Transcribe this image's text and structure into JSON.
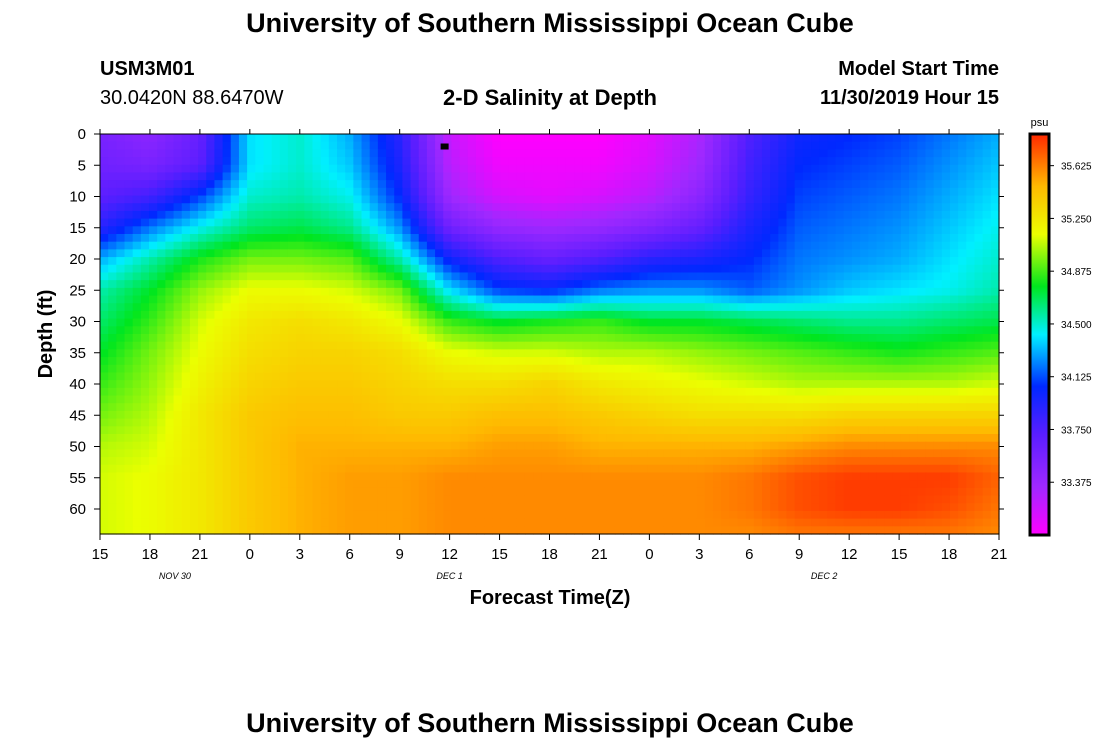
{
  "page": {
    "title_top": "University of Southern Mississippi Ocean Cube",
    "title_bottom": "University of Southern Mississippi Ocean Cube",
    "station_id": "USM3M01",
    "station_coords": "30.0420N 88.6470W",
    "plot_title": "2-D Salinity at Depth",
    "model_start_label": "Model Start Time",
    "model_start_value": "11/30/2019 Hour 15"
  },
  "chart_data": {
    "type": "heatmap",
    "title": "2-D Salinity at Depth",
    "xlabel": "Forecast Time(Z)",
    "ylabel": "Depth (ft)",
    "x_hours_from_start": [
      0,
      54
    ],
    "x_tick_labels": [
      "15",
      "18",
      "21",
      "0",
      "3",
      "6",
      "9",
      "12",
      "15",
      "18",
      "21",
      "0",
      "3",
      "6",
      "9",
      "12",
      "15",
      "18",
      "21"
    ],
    "date_labels": [
      {
        "text": "NOV 30",
        "hour": 4.5
      },
      {
        "text": "DEC 1",
        "hour": 21
      },
      {
        "text": "DEC 2",
        "hour": 43.5
      }
    ],
    "ylim": [
      0,
      64
    ],
    "y_ticks": [
      0,
      5,
      10,
      15,
      20,
      25,
      30,
      35,
      40,
      45,
      50,
      55,
      60
    ],
    "colorbar": {
      "unit": "psu",
      "range": [
        33.0,
        35.85
      ],
      "ticks": [
        "35.625",
        "35.250",
        "34.875",
        "34.500",
        "34.125",
        "33.750",
        "33.375"
      ],
      "tick_values": [
        35.625,
        35.25,
        34.875,
        34.5,
        34.125,
        33.75,
        33.375
      ]
    },
    "depth_levels_ft": [
      0,
      5,
      10,
      15,
      20,
      25,
      30,
      35,
      40,
      45,
      50,
      55,
      60,
      64
    ],
    "time_hours": [
      0,
      3,
      6,
      9,
      12,
      15,
      18,
      21,
      24,
      27,
      30,
      33,
      36,
      39,
      42,
      45,
      48,
      51,
      54
    ],
    "salinity_psu": [
      [
        33.55,
        33.45,
        33.65,
        34.4,
        34.5,
        34.3,
        33.9,
        33.2,
        33.0,
        33.0,
        33.0,
        33.1,
        33.3,
        33.75,
        34.0,
        34.05,
        34.1,
        34.2,
        34.3
      ],
      [
        33.6,
        33.55,
        33.7,
        34.4,
        34.5,
        34.35,
        33.95,
        33.25,
        33.05,
        33.05,
        33.05,
        33.15,
        33.35,
        33.8,
        34.05,
        34.1,
        34.15,
        34.25,
        34.35
      ],
      [
        33.7,
        33.8,
        34.1,
        34.5,
        34.55,
        34.45,
        34.05,
        33.35,
        33.15,
        33.1,
        33.15,
        33.25,
        33.45,
        33.85,
        34.1,
        34.15,
        34.2,
        34.3,
        34.4
      ],
      [
        33.9,
        34.2,
        34.45,
        34.65,
        34.7,
        34.6,
        34.25,
        33.6,
        33.4,
        33.35,
        33.4,
        33.5,
        33.65,
        33.95,
        34.15,
        34.2,
        34.25,
        34.35,
        34.45
      ],
      [
        34.3,
        34.55,
        34.8,
        34.95,
        34.95,
        34.9,
        34.55,
        34.0,
        33.75,
        33.65,
        33.75,
        33.9,
        33.95,
        34.05,
        34.2,
        34.25,
        34.3,
        34.4,
        34.5
      ],
      [
        34.55,
        34.75,
        35.0,
        35.15,
        35.15,
        35.1,
        34.95,
        34.4,
        34.1,
        34.05,
        34.2,
        34.25,
        34.25,
        34.15,
        34.25,
        34.35,
        34.4,
        34.45,
        34.55
      ],
      [
        34.65,
        34.85,
        35.1,
        35.25,
        35.3,
        35.25,
        35.15,
        34.85,
        34.75,
        34.8,
        34.85,
        34.75,
        34.75,
        34.7,
        34.65,
        34.6,
        34.6,
        34.65,
        34.7
      ],
      [
        34.75,
        34.95,
        35.15,
        35.3,
        35.35,
        35.35,
        35.3,
        35.15,
        35.1,
        35.1,
        35.05,
        35.05,
        35.0,
        34.95,
        34.9,
        34.85,
        34.8,
        34.85,
        34.9
      ],
      [
        34.85,
        35.0,
        35.2,
        35.35,
        35.4,
        35.4,
        35.35,
        35.3,
        35.3,
        35.35,
        35.25,
        35.2,
        35.15,
        35.1,
        35.05,
        35.05,
        35.05,
        35.05,
        35.1
      ],
      [
        34.95,
        35.05,
        35.25,
        35.4,
        35.45,
        35.45,
        35.4,
        35.4,
        35.45,
        35.45,
        35.4,
        35.35,
        35.3,
        35.3,
        35.3,
        35.35,
        35.35,
        35.35,
        35.35
      ],
      [
        35.05,
        35.1,
        35.25,
        35.4,
        35.5,
        35.5,
        35.5,
        35.5,
        35.55,
        35.55,
        35.5,
        35.5,
        35.5,
        35.5,
        35.55,
        35.6,
        35.6,
        35.6,
        35.6
      ],
      [
        35.1,
        35.15,
        35.25,
        35.4,
        35.5,
        35.55,
        35.55,
        35.6,
        35.6,
        35.6,
        35.6,
        35.6,
        35.6,
        35.65,
        35.75,
        35.8,
        35.8,
        35.8,
        35.7
      ],
      [
        35.1,
        35.15,
        35.25,
        35.4,
        35.5,
        35.55,
        35.55,
        35.6,
        35.6,
        35.6,
        35.6,
        35.6,
        35.6,
        35.65,
        35.75,
        35.8,
        35.8,
        35.75,
        35.65
      ],
      [
        35.1,
        35.15,
        35.25,
        35.4,
        35.5,
        35.55,
        35.55,
        35.6,
        35.6,
        35.6,
        35.6,
        35.6,
        35.6,
        35.6,
        35.65,
        35.65,
        35.65,
        35.65,
        35.6
      ]
    ],
    "marker": {
      "hour": 20.7,
      "depth_ft": 2
    }
  }
}
